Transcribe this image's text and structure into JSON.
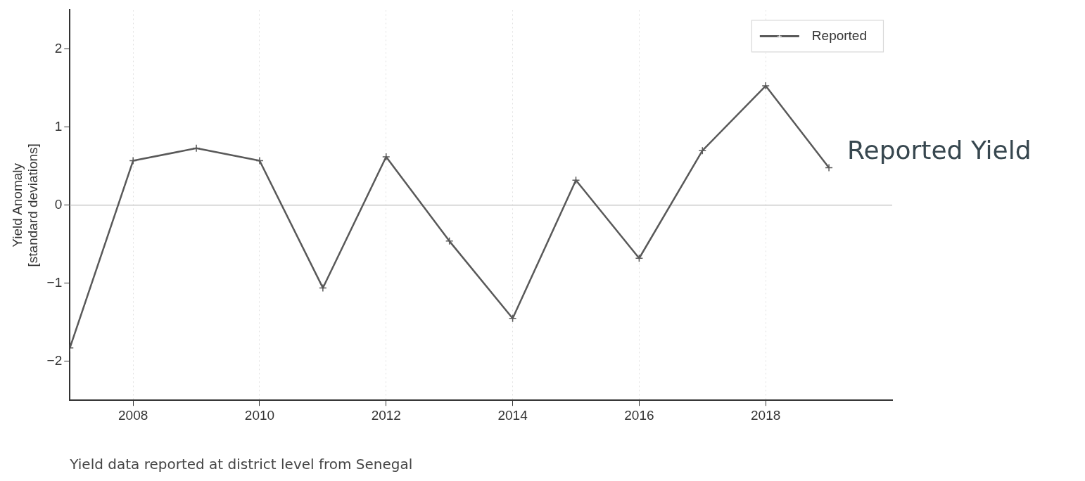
{
  "chart_data": {
    "type": "line",
    "ylabel": "Yield Anomaly\n[standard deviations]",
    "x": [
      2007,
      2008,
      2009,
      2010,
      2011,
      2012,
      2013,
      2014,
      2015,
      2016,
      2017,
      2018,
      2019
    ],
    "series": [
      {
        "name": "Reported",
        "color": "#595959",
        "values": [
          -1.83,
          0.57,
          0.73,
          0.57,
          -1.06,
          0.62,
          -0.46,
          -1.45,
          0.32,
          -0.68,
          0.7,
          1.53,
          0.48
        ]
      }
    ],
    "xlim": [
      2007,
      2020
    ],
    "xticks": [
      2008,
      2010,
      2012,
      2014,
      2016,
      2018
    ],
    "ylim": [
      -2.5,
      2.5
    ],
    "yticks": [
      -2,
      -1,
      0,
      1,
      2
    ],
    "ref_lines": [
      {
        "axis": "y",
        "value": 0,
        "color": "#cccccc"
      }
    ],
    "grid": "x",
    "legend": "top right",
    "marker": "cross",
    "line_style": "solid",
    "annotations": [
      "Reported Yield",
      "Yield data reported at district level from Senegal"
    ]
  }
}
